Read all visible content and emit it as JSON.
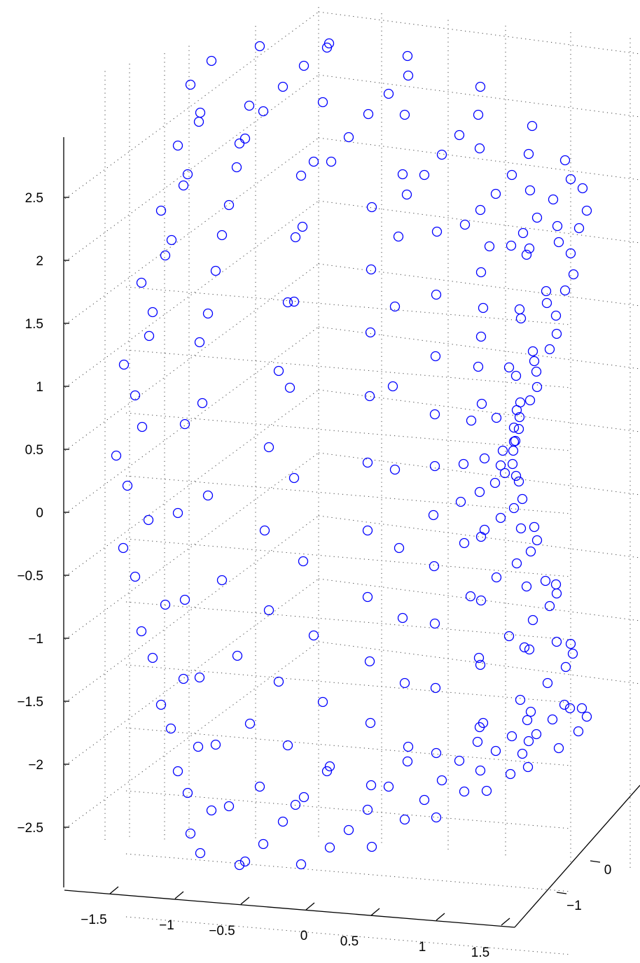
{
  "chart_data": {
    "type": "scatter",
    "projection": "3d",
    "grid": true,
    "marker": "circle",
    "series": [
      {
        "color": "#0000ff",
        "values": "see points"
      }
    ],
    "axes": {
      "x": {
        "ticks": [
          -1.5,
          -1,
          -0.5,
          0,
          0.5,
          1,
          1.5
        ],
        "tick_labels": [
          "−1.5",
          "−1",
          "−0.5",
          "0",
          "0.5",
          "1",
          "1.5"
        ],
        "range": [
          -1.8,
          1.8
        ]
      },
      "y": {
        "ticks": [
          -1,
          0
        ],
        "tick_labels": [
          "−1",
          "0"
        ],
        "range": [
          -1.8,
          1.8
        ]
      },
      "z": {
        "ticks": [
          -2.5,
          -2,
          -1.5,
          -1,
          -0.5,
          0,
          0.5,
          1,
          1.5,
          2,
          2.5
        ],
        "tick_labels": [
          "−2.5",
          "−2",
          "−1.5",
          "−1",
          "−0.5",
          "0",
          "0.5",
          "1",
          "1.5",
          "2",
          "2.5"
        ],
        "range": [
          -2.8,
          2.8
        ]
      }
    },
    "screen_points": [
      [
        302,
        87
      ],
      [
        371,
        66
      ],
      [
        467,
        68
      ],
      [
        470,
        62
      ],
      [
        582,
        80
      ],
      [
        434,
        94
      ],
      [
        272,
        121
      ],
      [
        404,
        124
      ],
      [
        356,
        151
      ],
      [
        461,
        146
      ],
      [
        555,
        134
      ],
      [
        583,
        108
      ],
      [
        686,
        124
      ],
      [
        286,
        161
      ],
      [
        284,
        174
      ],
      [
        376,
        159
      ],
      [
        526,
        163
      ],
      [
        578,
        164
      ],
      [
        683,
        164
      ],
      [
        760,
        180
      ],
      [
        254,
        208
      ],
      [
        342,
        205
      ],
      [
        350,
        198
      ],
      [
        498,
        196
      ],
      [
        656,
        193
      ],
      [
        685,
        212
      ],
      [
        448,
        231
      ],
      [
        473,
        231
      ],
      [
        338,
        239
      ],
      [
        430,
        251
      ],
      [
        575,
        249
      ],
      [
        606,
        250
      ],
      [
        631,
        221
      ],
      [
        731,
        250
      ],
      [
        755,
        220
      ],
      [
        807,
        229
      ],
      [
        815,
        256
      ],
      [
        268,
        249
      ],
      [
        262,
        265
      ],
      [
        531,
        296
      ],
      [
        581,
        278
      ],
      [
        708,
        277
      ],
      [
        757,
        272
      ],
      [
        790,
        285
      ],
      [
        832,
        269
      ],
      [
        838,
        301
      ],
      [
        230,
        301
      ],
      [
        327,
        293
      ],
      [
        432,
        324
      ],
      [
        422,
        339
      ],
      [
        317,
        336
      ],
      [
        245,
        343
      ],
      [
        236,
        365
      ],
      [
        569,
        338
      ],
      [
        624,
        331
      ],
      [
        664,
        321
      ],
      [
        686,
        300
      ],
      [
        699,
        352
      ],
      [
        730,
        351
      ],
      [
        747,
        333
      ],
      [
        756,
        355
      ],
      [
        752,
        364
      ],
      [
        767,
        311
      ],
      [
        796,
        323
      ],
      [
        798,
        346
      ],
      [
        815,
        362
      ],
      [
        827,
        326
      ],
      [
        308,
        387
      ],
      [
        530,
        385
      ],
      [
        687,
        389
      ],
      [
        819,
        392
      ],
      [
        202,
        404
      ],
      [
        218,
        446
      ],
      [
        213,
        480
      ],
      [
        297,
        448
      ],
      [
        411,
        432
      ],
      [
        420,
        431
      ],
      [
        564,
        438
      ],
      [
        623,
        421
      ],
      [
        690,
        440
      ],
      [
        742,
        442
      ],
      [
        744,
        455
      ],
      [
        780,
        416
      ],
      [
        781,
        433
      ],
      [
        794,
        451
      ],
      [
        795,
        477
      ],
      [
        785,
        499
      ],
      [
        807,
        415
      ],
      [
        285,
        489
      ],
      [
        529,
        475
      ],
      [
        687,
        481
      ],
      [
        622,
        509
      ],
      [
        683,
        524
      ],
      [
        727,
        525
      ],
      [
        737,
        537
      ],
      [
        761,
        502
      ],
      [
        763,
        516
      ],
      [
        766,
        531
      ],
      [
        177,
        521
      ],
      [
        398,
        530
      ],
      [
        414,
        554
      ],
      [
        561,
        552
      ],
      [
        528,
        566
      ],
      [
        193,
        565
      ],
      [
        289,
        576
      ],
      [
        767,
        553
      ],
      [
        757,
        572
      ],
      [
        743,
        575
      ],
      [
        738,
        586
      ],
      [
        734,
        611
      ],
      [
        742,
        596
      ],
      [
        741,
        613
      ],
      [
        688,
        577
      ],
      [
        673,
        601
      ],
      [
        709,
        597
      ],
      [
        621,
        592
      ],
      [
        203,
        610
      ],
      [
        264,
        606
      ],
      [
        384,
        639
      ],
      [
        734,
        631
      ],
      [
        733,
        644
      ],
      [
        736,
        630
      ],
      [
        718,
        644
      ],
      [
        715,
        665
      ],
      [
        692,
        655
      ],
      [
        662,
        663
      ],
      [
        621,
        666
      ],
      [
        564,
        671
      ],
      [
        525,
        661
      ],
      [
        166,
        651
      ],
      [
        420,
        683
      ],
      [
        182,
        694
      ],
      [
        297,
        708
      ],
      [
        658,
        717
      ],
      [
        685,
        703
      ],
      [
        707,
        690
      ],
      [
        721,
        676
      ],
      [
        732,
        663
      ],
      [
        737,
        680
      ],
      [
        741,
        688
      ],
      [
        746,
        713
      ],
      [
        734,
        726
      ],
      [
        715,
        740
      ],
      [
        619,
        736
      ],
      [
        254,
        733
      ],
      [
        212,
        743
      ],
      [
        378,
        758
      ],
      [
        525,
        758
      ],
      [
        663,
        776
      ],
      [
        687,
        767
      ],
      [
        692,
        757
      ],
      [
        744,
        755
      ],
      [
        763,
        753
      ],
      [
        767,
        772
      ],
      [
        758,
        788
      ],
      [
        570,
        783
      ],
      [
        176,
        783
      ],
      [
        433,
        802
      ],
      [
        738,
        805
      ],
      [
        317,
        829
      ],
      [
        193,
        824
      ],
      [
        779,
        830
      ],
      [
        794,
        835
      ],
      [
        795,
        848
      ],
      [
        752,
        838
      ],
      [
        709,
        825
      ],
      [
        620,
        809
      ],
      [
        672,
        852
      ],
      [
        687,
        858
      ],
      [
        785,
        866
      ],
      [
        525,
        853
      ],
      [
        236,
        864
      ],
      [
        264,
        857
      ],
      [
        384,
        872
      ],
      [
        575,
        883
      ],
      [
        621,
        891
      ],
      [
        761,
        886
      ],
      [
        727,
        909
      ],
      [
        448,
        908
      ],
      [
        202,
        902
      ],
      [
        795,
        917
      ],
      [
        749,
        925
      ],
      [
        756,
        928
      ],
      [
        815,
        920
      ],
      [
        818,
        934
      ],
      [
        808,
        953
      ],
      [
        684,
        940
      ],
      [
        686,
        950
      ],
      [
        528,
        945
      ],
      [
        339,
        937
      ],
      [
        218,
        940
      ],
      [
        262,
        970
      ],
      [
        285,
        968
      ],
      [
        398,
        974
      ],
      [
        578,
        976
      ],
      [
        622,
        983
      ],
      [
        782,
        976
      ],
      [
        461,
        1003
      ],
      [
        230,
        1007
      ],
      [
        743,
        1000
      ],
      [
        758,
        1017
      ],
      [
        806,
        1007
      ],
      [
        814,
        1012
      ],
      [
        831,
        1012
      ],
      [
        838,
        1024
      ],
      [
        685,
        1039
      ],
      [
        690,
        1033
      ],
      [
        753,
        1029
      ],
      [
        789,
        1028
      ],
      [
        826,
        1045
      ],
      [
        529,
        1033
      ],
      [
        357,
        1034
      ],
      [
        244,
        1041
      ],
      [
        731,
        1052
      ],
      [
        766,
        1049
      ],
      [
        755,
        1059
      ],
      [
        682,
        1060
      ],
      [
        798,
        1069
      ],
      [
        283,
        1067
      ],
      [
        308,
        1064
      ],
      [
        411,
        1065
      ],
      [
        583,
        1067
      ],
      [
        708,
        1073
      ],
      [
        746,
        1077
      ],
      [
        623,
        1076
      ],
      [
        471,
        1095
      ],
      [
        467,
        1102
      ],
      [
        582,
        1088
      ],
      [
        656,
        1087
      ],
      [
        686,
        1101
      ],
      [
        729,
        1106
      ],
      [
        754,
        1096
      ],
      [
        254,
        1102
      ],
      [
        268,
        1133
      ],
      [
        371,
        1124
      ],
      [
        434,
        1139
      ],
      [
        422,
        1150
      ],
      [
        327,
        1152
      ],
      [
        302,
        1158
      ],
      [
        530,
        1122
      ],
      [
        555,
        1124
      ],
      [
        631,
        1115
      ],
      [
        663,
        1131
      ],
      [
        695,
        1130
      ],
      [
        606,
        1143
      ],
      [
        272,
        1191
      ],
      [
        404,
        1174
      ],
      [
        525,
        1157
      ],
      [
        578,
        1171
      ],
      [
        623,
        1168
      ],
      [
        498,
        1186
      ],
      [
        471,
        1211
      ],
      [
        531,
        1210
      ],
      [
        376,
        1206
      ],
      [
        350,
        1231
      ],
      [
        342,
        1236
      ],
      [
        430,
        1235
      ],
      [
        286,
        1219
      ]
    ]
  }
}
